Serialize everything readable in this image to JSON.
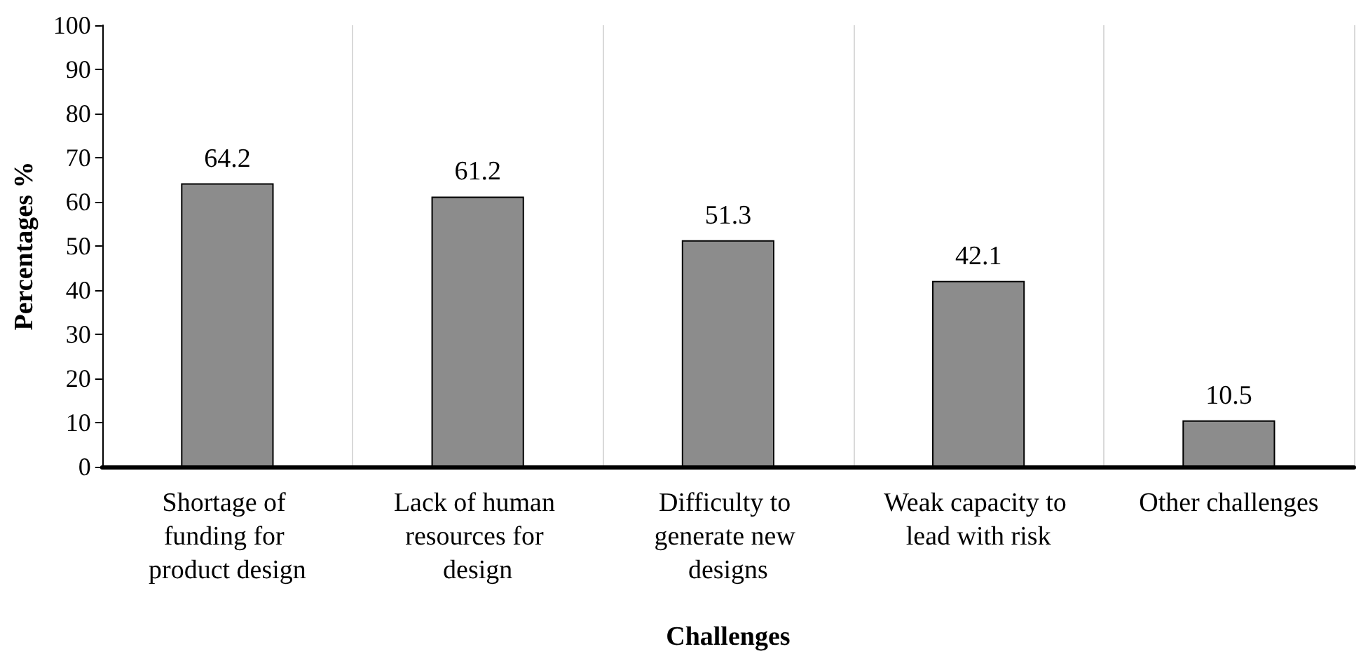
{
  "chart_data": {
    "type": "bar",
    "xlabel": "Challenges",
    "ylabel": "Percentages %",
    "categories": [
      "Shortage of funding for product design",
      "Lack of human resources for design",
      "Difficulty to generate new designs",
      "Weak capacity to lead with risk",
      "Other challenges"
    ],
    "values": [
      64.2,
      61.2,
      51.3,
      42.1,
      10.5
    ],
    "color": "#8c8c8c",
    "ylim": [
      0,
      100
    ],
    "yticks": [
      0,
      10,
      20,
      30,
      40,
      50,
      60,
      70,
      80,
      90,
      100
    ],
    "grid": "x",
    "data_labels": true
  }
}
